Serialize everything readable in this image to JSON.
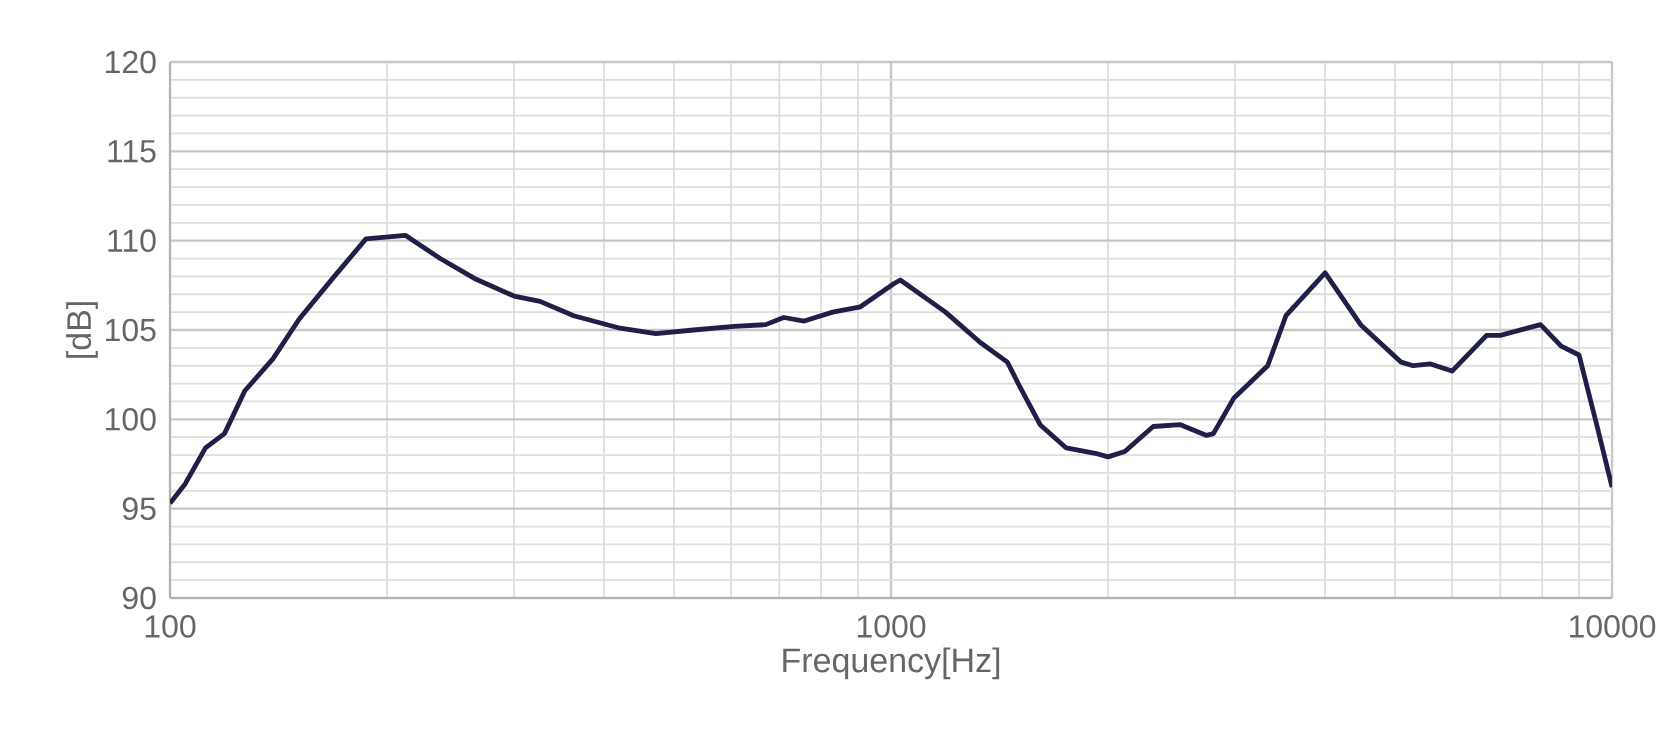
{
  "chart_data": {
    "type": "line",
    "xlabel": "Frequency[Hz]",
    "ylabel": "[dB]",
    "log": "x",
    "grid": true,
    "color": "#1f1f4a",
    "xlim": [
      100,
      10000
    ],
    "xticks": [
      100,
      1000,
      10000
    ],
    "ylim": [
      90,
      120
    ],
    "yticks": [
      90,
      95,
      100,
      105,
      110,
      115,
      120
    ],
    "x": [
      100,
      105,
      112,
      119,
      127,
      139,
      151,
      169,
      187,
      212,
      237,
      264,
      300,
      326,
      363,
      421,
      472,
      532,
      606,
      670,
      710,
      758,
      830,
      907,
      1010,
      1030,
      1190,
      1330,
      1450,
      1510,
      1610,
      1750,
      1920,
      2000,
      2110,
      2310,
      2520,
      2740,
      2800,
      2990,
      3330,
      3530,
      4000,
      4480,
      5100,
      5300,
      5600,
      6000,
      6700,
      7000,
      7960,
      8500,
      9000,
      9550,
      10000
    ],
    "values": [
      95.3,
      96.4,
      98.4,
      99.2,
      101.6,
      103.4,
      105.6,
      108,
      110.1,
      110.3,
      109,
      107.9,
      106.9,
      106.6,
      105.8,
      105.1,
      104.8,
      105,
      105.2,
      105.3,
      105.7,
      105.5,
      106,
      106.3,
      107.6,
      107.8,
      106,
      104.3,
      103.2,
      101.8,
      99.7,
      98.4,
      98.1,
      97.9,
      98.2,
      99.6,
      99.7,
      99.1,
      99.2,
      101.2,
      103,
      105.8,
      108.2,
      105.3,
      103.2,
      103,
      103.1,
      102.7,
      104.7,
      104.7,
      105.3,
      104.1,
      103.6,
      99.5,
      96.2
    ]
  }
}
